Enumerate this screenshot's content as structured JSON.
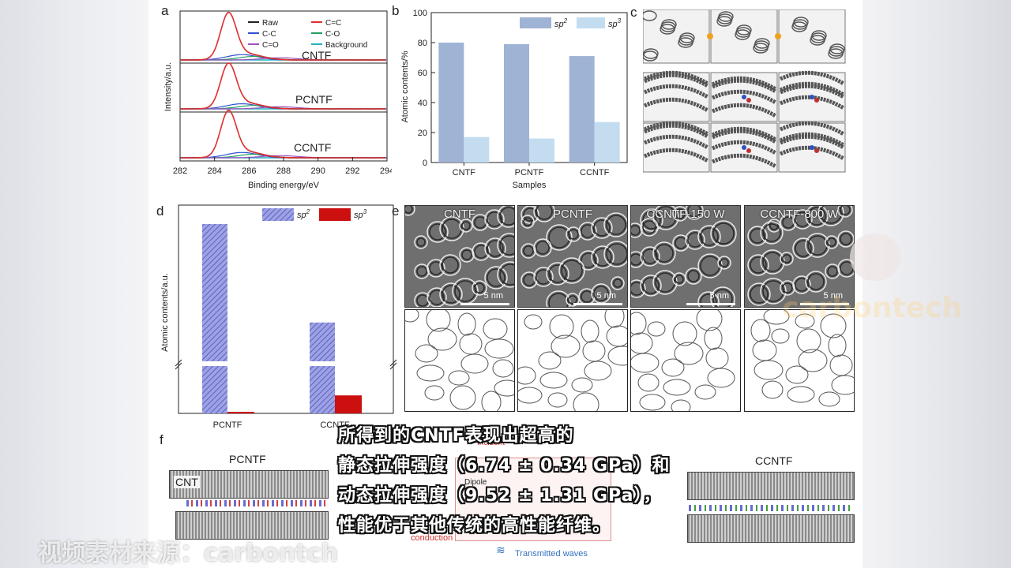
{
  "panel_a": {
    "letter": "a",
    "legend": [
      "Raw",
      "C=C",
      "C-C",
      "C-O",
      "C=O",
      "Background"
    ],
    "legend_colors": [
      "#222222",
      "#e03030",
      "#3050d0",
      "#20a060",
      "#a050c0",
      "#20b0c0"
    ],
    "traces": [
      "CNTF",
      "PCNTF",
      "CCNTF"
    ],
    "xticks": [
      "282",
      "284",
      "286",
      "288",
      "290",
      "292",
      "294"
    ],
    "xlabel": "Binding energy/eV",
    "ylabel": "Intensity/a.u."
  },
  "panel_b": {
    "letter": "b",
    "legend": [
      "sp",
      "sp"
    ],
    "legend_sup": [
      "2",
      "3"
    ],
    "xlabel": "Samples",
    "ylabel": "Atomic contents/%",
    "yticks": [
      "0",
      "20",
      "40",
      "60",
      "80",
      "100"
    ]
  },
  "panel_c": {
    "letter": "c"
  },
  "panel_d": {
    "letter": "d",
    "legend": [
      "sp",
      "sp"
    ],
    "legend_sup": [
      "2",
      "3"
    ],
    "ylabel": "Atomic contents/a.u.",
    "categories": [
      "PCNTF",
      "CCNTF"
    ]
  },
  "panel_e": {
    "letter": "e",
    "images": [
      {
        "label": "CNTF",
        "scale": "5 nm"
      },
      {
        "label": "PCNTF",
        "scale": "5 nm"
      },
      {
        "label": "CCNTF-150 W",
        "scale": "5 nm"
      },
      {
        "label": "CCNTF-800 W",
        "scale": "5 nm"
      }
    ]
  },
  "panel_f": {
    "letter": "f",
    "left_title": "PCNTF",
    "right_title": "CCNTF",
    "cnt_label": "CNT",
    "labels": [
      "Incident",
      "Reflected",
      "Dipole",
      "conduction",
      "Transmitted waves"
    ]
  },
  "chart_data": [
    {
      "type": "bar",
      "title": "",
      "categories": [
        "CNTF",
        "PCNTF",
        "CCNTF"
      ],
      "series": [
        {
          "name": "sp2",
          "values": [
            80,
            79,
            71
          ]
        },
        {
          "name": "sp3",
          "values": [
            17,
            16,
            27
          ]
        }
      ],
      "xlabel": "Samples",
      "ylabel": "Atomic contents/%",
      "ylim": [
        0,
        100
      ],
      "colors": [
        "#9fb3d4",
        "#c4dcf0"
      ],
      "legend": "top"
    },
    {
      "type": "bar",
      "title": "",
      "categories": [
        "PCNTF",
        "CCNTF"
      ],
      "series": [
        {
          "name": "sp2",
          "values": [
            100,
            48
          ]
        },
        {
          "name": "sp3",
          "values": [
            0.6,
            9.5
          ]
        }
      ],
      "ylabel": "Atomic contents/a.u.",
      "ylim": [
        0,
        105
      ],
      "colors": [
        "#7f85d8",
        "#cc1010"
      ],
      "legend": "top-right"
    }
  ],
  "subtitle_lines": [
    "所得到的CNTF表现出超高的",
    "静态拉伸强度（6.74 ± 0.34 GPa）和",
    "动态拉伸强度（9.52 ± 1.31 GPa），",
    "性能优于其他传统的高性能纤维。"
  ],
  "source_text": "视频素材来源：carbontch",
  "watermark_text": "carbontech"
}
